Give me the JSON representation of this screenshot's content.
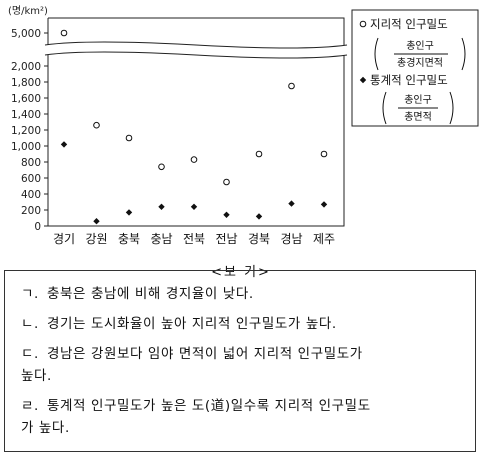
{
  "chart_data": {
    "type": "scatter",
    "unit_label": "(명/km²)",
    "categories": [
      "경기",
      "강원",
      "충북",
      "충남",
      "전북",
      "전남",
      "경북",
      "경남",
      "제주"
    ],
    "series": [
      {
        "name": "지리적 인구밀도",
        "marker": "open-circle",
        "values": [
          5000,
          1260,
          1100,
          740,
          830,
          550,
          900,
          1750,
          900
        ],
        "formula_numerator": "총인구",
        "formula_denominator": "총경지면적"
      },
      {
        "name": "통계적 인구밀도",
        "marker": "filled-diamond",
        "values": [
          1020,
          60,
          170,
          240,
          240,
          140,
          120,
          280,
          270
        ],
        "formula_numerator": "총인구",
        "formula_denominator": "총면적"
      }
    ],
    "y_ticks": [
      "0",
      "200",
      "400",
      "600",
      "800",
      "1,000",
      "1,200",
      "1,400",
      "1,600",
      "1,800",
      "2,000"
    ],
    "y_break_tick": "5,000",
    "ylim": [
      0,
      2000
    ],
    "y_break": true,
    "grid": false,
    "legend_placement": "right"
  },
  "box": {
    "title": "<보 기>",
    "items": [
      {
        "marker": "ㄱ.",
        "lines": [
          "충북은 충남에 비해 경지율이 낮다."
        ]
      },
      {
        "marker": "ㄴ.",
        "lines": [
          "경기는 도시화율이 높아 지리적 인구밀도가 높다."
        ]
      },
      {
        "marker": "ㄷ.",
        "lines": [
          "경남은 강원보다 임야 면적이 넓어 지리적 인구밀도가",
          "높다."
        ]
      },
      {
        "marker": "ㄹ.",
        "lines": [
          "통계적 인구밀도가 높은 도(道)일수록 지리적 인구밀도",
          "가 높다."
        ]
      }
    ]
  }
}
